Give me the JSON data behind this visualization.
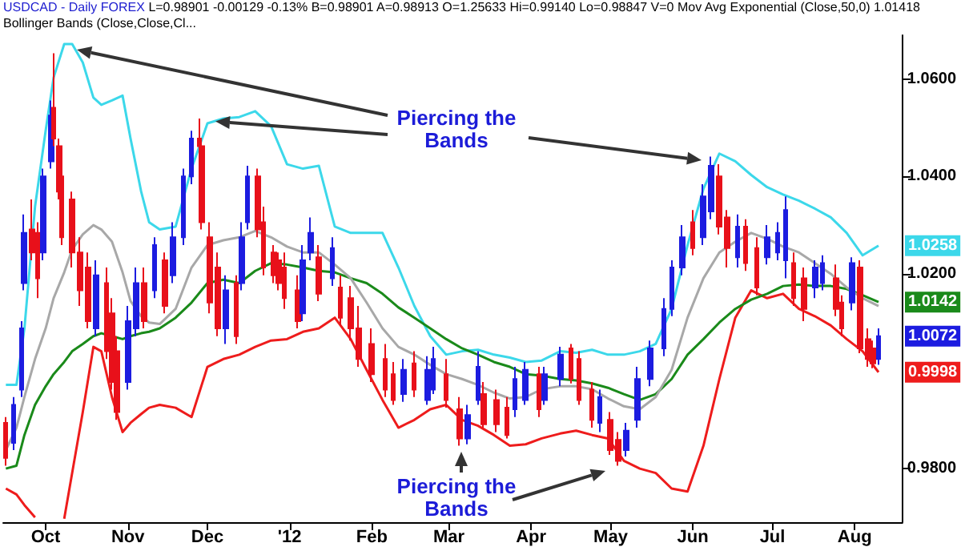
{
  "chart_data": {
    "type": "candlestick",
    "title": "USDCAD - Daily FOREX",
    "subtitle": "L=0.98901 -0.00129 -0.13% B=0.98901 A=0.98913 O=1.25633 Hi=0.99140 Lo=0.98847 V=0 Mov Avg Exponential (Close,50,0) 1.01418 Bollinger Bands (Close,Close,Cl...",
    "annotations": [
      {
        "text": "Piercing the Bands",
        "x": "2011-12-04",
        "y": 1.0513
      },
      "Piercing the Bands"
    ],
    "xlim": [
      "2011-09-15",
      "2012-08-19"
    ],
    "xticks": [
      {
        "value": "2011-10-01",
        "label": "Oct"
      },
      {
        "value": "2011-11-01",
        "label": "Nov"
      },
      {
        "value": "2011-12-01",
        "label": "Dec"
      },
      {
        "value": "2012-01-01",
        "label": "'12"
      },
      {
        "value": "2012-02-01",
        "label": "Feb"
      },
      {
        "value": "2012-03-01",
        "label": "Mar"
      },
      {
        "value": "2012-04-01",
        "label": "Apr"
      },
      {
        "value": "2012-05-01",
        "label": "May"
      },
      {
        "value": "2012-06-01",
        "label": "Jun"
      },
      {
        "value": "2012-07-01",
        "label": "Jul"
      },
      {
        "value": "2012-08-01",
        "label": "Aug"
      }
    ],
    "ylim": [
      0.969,
      1.069
    ],
    "yticks": [
      {
        "value": 0.98,
        "label": "0.9800"
      },
      {
        "value": 1.02,
        "label": "1.0200"
      },
      {
        "value": 1.04,
        "label": "1.0400"
      },
      {
        "value": 1.06,
        "label": "1.0600"
      }
    ],
    "x": [
      "2011-09-16",
      "2011-09-20",
      "2011-09-23",
      "2011-09-27",
      "2011-10-01",
      "2011-10-04",
      "2011-10-08",
      "2011-10-11",
      "2011-10-15",
      "2011-10-19",
      "2011-10-22",
      "2011-10-26",
      "2011-10-30",
      "2011-11-02",
      "2011-11-06",
      "2011-11-09",
      "2011-11-13",
      "2011-11-19",
      "2011-11-25",
      "2011-12-01",
      "2011-12-07",
      "2011-12-13",
      "2011-12-19",
      "2011-12-25",
      "2011-12-31",
      "2012-01-06",
      "2012-01-12",
      "2012-01-18",
      "2012-01-24",
      "2012-01-30",
      "2012-02-05",
      "2012-02-11",
      "2012-02-17",
      "2012-02-23",
      "2012-02-29",
      "2012-03-06",
      "2012-03-12",
      "2012-03-18",
      "2012-03-24",
      "2012-03-30",
      "2012-04-05",
      "2012-04-12",
      "2012-04-18",
      "2012-04-24",
      "2012-04-30",
      "2012-05-06",
      "2012-05-12",
      "2012-05-18",
      "2012-05-24",
      "2012-05-30",
      "2012-06-05",
      "2012-06-11",
      "2012-06-17",
      "2012-06-23",
      "2012-06-29",
      "2012-07-05",
      "2012-07-11",
      "2012-07-17",
      "2012-07-23",
      "2012-07-29",
      "2012-08-04",
      "2012-08-10"
    ],
    "series": [
      {
        "x": [
          "2011-09-16",
          "2011-09-19",
          "2011-09-22",
          "2011-09-23",
          "2011-09-26",
          "2011-09-28",
          "2011-09-30",
          "2011-10-03",
          "2011-10-04",
          "2011-10-06",
          "2011-10-07",
          "2011-10-11",
          "2011-10-14",
          "2011-10-17",
          "2011-10-20",
          "2011-10-24",
          "2011-10-26",
          "2011-10-28",
          "2011-11-01",
          "2011-11-04",
          "2011-11-07",
          "2011-11-11",
          "2011-11-15",
          "2011-11-18",
          "2011-11-22",
          "2011-11-25",
          "2011-11-28",
          "2011-11-29",
          "2011-12-02",
          "2011-12-05",
          "2011-12-08",
          "2011-12-12",
          "2011-12-14",
          "2011-12-16",
          "2011-12-20",
          "2011-12-22",
          "2011-12-26",
          "2011-12-28",
          "2011-12-30",
          "2012-01-04",
          "2012-01-06",
          "2012-01-09",
          "2012-01-12",
          "2012-01-17",
          "2012-01-20",
          "2012-01-24",
          "2012-01-27",
          "2012-02-01",
          "2012-02-06",
          "2012-02-09",
          "2012-02-13",
          "2012-02-17",
          "2012-02-22",
          "2012-02-24",
          "2012-02-29",
          "2012-03-05",
          "2012-03-08",
          "2012-03-12",
          "2012-03-14",
          "2012-03-19",
          "2012-03-23",
          "2012-03-26",
          "2012-03-30",
          "2012-04-04",
          "2012-04-06",
          "2012-04-12",
          "2012-04-16",
          "2012-04-19",
          "2012-04-24",
          "2012-04-27",
          "2012-05-01",
          "2012-05-04",
          "2012-05-07",
          "2012-05-11",
          "2012-05-16",
          "2012-05-21",
          "2012-05-24",
          "2012-05-28",
          "2012-06-01",
          "2012-06-05",
          "2012-06-08",
          "2012-06-11",
          "2012-06-14",
          "2012-06-18",
          "2012-06-21",
          "2012-06-25",
          "2012-06-29",
          "2012-07-03",
          "2012-07-06",
          "2012-07-09",
          "2012-07-13",
          "2012-07-17",
          "2012-07-20",
          "2012-07-25",
          "2012-07-27",
          "2012-07-31",
          "2012-08-03",
          "2012-08-06",
          "2012-08-08",
          "2012-08-10"
        ],
        "ohlc": [
          [
            0.9894,
            0.9906,
            0.9806,
            0.9822
          ],
          [
            0.9853,
            0.9947,
            0.9838,
            0.9931
          ],
          [
            0.9962,
            1.0103,
            0.9947,
            1.0088
          ],
          [
            1.0181,
            1.0322,
            1.0166,
            1.0284
          ],
          [
            1.0291,
            1.0353,
            1.0228,
            1.0244
          ],
          [
            1.0284,
            1.0306,
            1.015,
            1.0191
          ],
          [
            1.0244,
            1.0416,
            1.0228,
            1.04
          ],
          [
            1.0431,
            1.0556,
            1.0416,
            1.0525
          ],
          [
            1.0541,
            1.0653,
            1.0462,
            1.0478
          ],
          [
            1.0462,
            1.0478,
            1.0353,
            1.0369
          ],
          [
            1.04,
            1.0416,
            1.0259,
            1.0275
          ],
          [
            1.0353,
            1.0369,
            1.0213,
            1.0244
          ],
          [
            1.0244,
            1.0275,
            1.0134,
            1.0166
          ],
          [
            1.0213,
            1.0244,
            1.0088,
            1.0103
          ],
          [
            1.0088,
            1.0228,
            1.0072,
            1.0197
          ],
          [
            1.0181,
            1.0213,
            1.0025,
            1.0041
          ],
          [
            1.0119,
            1.015,
            0.9962,
            0.9978
          ],
          [
            1.0041,
            1.0072,
            0.99,
            0.9916
          ],
          [
            0.9978,
            1.0134,
            0.9962,
            1.0103
          ],
          [
            1.0088,
            1.0213,
            1.0072,
            1.0181
          ],
          [
            1.0181,
            1.0213,
            1.0088,
            1.0103
          ],
          [
            1.0166,
            1.0275,
            1.015,
            1.0259
          ],
          [
            1.0228,
            1.0244,
            1.0119,
            1.0134
          ],
          [
            1.0197,
            1.0306,
            1.0181,
            1.0275
          ],
          [
            1.0275,
            1.0416,
            1.0259,
            1.04
          ],
          [
            1.04,
            1.0494,
            1.0384,
            1.0478
          ],
          [
            1.0478,
            1.0519,
            1.0431,
            1.0462
          ],
          [
            1.0462,
            1.0478,
            1.0291,
            1.0306
          ],
          [
            1.0275,
            1.0306,
            1.0119,
            1.0141
          ],
          [
            1.0213,
            1.0244,
            1.0072,
            1.0088
          ],
          [
            1.0088,
            1.0197,
            1.0056,
            1.0166
          ],
          [
            1.0181,
            1.0197,
            1.0056,
            1.0072
          ],
          [
            1.0181,
            1.0306,
            1.0166,
            1.0275
          ],
          [
            1.0306,
            1.0422,
            1.0291,
            1.04
          ],
          [
            1.04,
            1.0416,
            1.0275,
            1.0291
          ],
          [
            1.0306,
            1.0338,
            1.0197,
            1.0213
          ],
          [
            1.0244,
            1.0259,
            1.0181,
            1.0197
          ],
          [
            1.0228,
            1.0244,
            1.0166,
            1.0181
          ],
          [
            1.0213,
            1.0244,
            1.0128,
            1.015
          ],
          [
            1.0166,
            1.0197,
            1.0088,
            1.0103
          ],
          [
            1.0119,
            1.0259,
            1.0103,
            1.0228
          ],
          [
            1.0244,
            1.0316,
            1.0228,
            1.0284
          ],
          [
            1.0234,
            1.0259,
            1.0144,
            1.0159
          ],
          [
            1.0191,
            1.0275,
            1.0175,
            1.0253
          ],
          [
            1.0172,
            1.0197,
            1.0094,
            1.011
          ],
          [
            1.015,
            1.0175,
            1.0063,
            1.0088
          ],
          [
            1.0088,
            1.0134,
            1.0009,
            1.0025
          ],
          [
            1.0056,
            1.0088,
            0.9978,
            0.9994
          ],
          [
            1.0025,
            1.0056,
            0.9947,
            0.9962
          ],
          [
            0.9994,
            1.0019,
            0.9931,
            0.9941
          ],
          [
            0.9953,
            1.0025,
            0.9937,
            1.0003
          ],
          [
            1.0016,
            1.0041,
            0.9947,
            0.9962
          ],
          [
            0.9941,
            1.0031,
            0.9931,
            1.0003
          ],
          [
            0.9962,
            1.005,
            0.9953,
            1.0025
          ],
          [
            0.9994,
            1.0025,
            0.9925,
            0.9941
          ],
          [
            0.9922,
            0.9947,
            0.9847,
            0.9862
          ],
          [
            0.9862,
            0.9931,
            0.985,
            0.991
          ],
          [
            0.9941,
            1.0041,
            0.9931,
            1.0009
          ],
          [
            0.9953,
            0.9978,
            0.9884,
            0.9891
          ],
          [
            0.9941,
            0.9962,
            0.9875,
            0.9891
          ],
          [
            0.9925,
            0.9947,
            0.9862,
            0.9869
          ],
          [
            0.9922,
            1.0009,
            0.9906,
            0.9984
          ],
          [
            0.9941,
            1.0019,
            0.9931,
            1.0003
          ],
          [
            0.9994,
            1.0009,
            0.9906,
            0.9922
          ],
          [
            0.9941,
            1.0009,
            0.9931,
            0.9994
          ],
          [
            0.9984,
            1.005,
            0.9969,
            1.0034
          ],
          [
            1.0047,
            1.0056,
            0.9975,
            0.9984
          ],
          [
            1.0025,
            1.0041,
            0.9931,
            0.9941
          ],
          [
            0.9962,
            0.9978,
            0.9884,
            0.99
          ],
          [
            0.9894,
            0.9962,
            0.9875,
            0.9947
          ],
          [
            0.99,
            0.9916,
            0.9828,
            0.9838
          ],
          [
            0.9859,
            0.9875,
            0.9806,
            0.9816
          ],
          [
            0.9838,
            0.9894,
            0.9825,
            0.9878
          ],
          [
            0.99,
            1.0009,
            0.9884,
            0.9984
          ],
          [
            0.9984,
            1.0063,
            0.9969,
            1.0047
          ],
          [
            1.0047,
            1.015,
            1.0031,
            1.0128
          ],
          [
            1.0128,
            1.0228,
            1.0113,
            1.0213
          ],
          [
            1.0213,
            1.03,
            1.0197,
            1.0275
          ],
          [
            1.0306,
            1.0331,
            1.0238,
            1.0253
          ],
          [
            1.0275,
            1.0384,
            1.0259,
            1.0359
          ],
          [
            1.0328,
            1.0441,
            1.0312,
            1.0422
          ],
          [
            1.04,
            1.0425,
            1.0281,
            1.0297
          ],
          [
            1.0316,
            1.0331,
            1.0213,
            1.0253
          ],
          [
            1.0234,
            1.0322,
            1.0213,
            1.0297
          ],
          [
            1.0297,
            1.0312,
            1.0206,
            1.0222
          ],
          [
            1.0253,
            1.0275,
            1.0156,
            1.0172
          ],
          [
            1.0234,
            1.03,
            1.0219,
            1.0275
          ],
          [
            1.0244,
            1.0306,
            1.0228,
            1.0284
          ],
          [
            1.0228,
            1.0359,
            1.0191,
            1.0331
          ],
          [
            1.0222,
            1.0244,
            1.0134,
            1.015
          ],
          [
            1.0191,
            1.0213,
            1.0103,
            1.0128
          ],
          [
            1.0172,
            1.0228,
            1.015,
            1.0213
          ],
          [
            1.0181,
            1.0238,
            1.0166,
            1.0222
          ],
          [
            1.0191,
            1.0219,
            1.0113,
            1.0128
          ],
          [
            1.0141,
            1.0156,
            1.0072,
            1.0088
          ],
          [
            1.0141,
            1.0234,
            1.0125,
            1.0222
          ],
          [
            1.0213,
            1.0228,
            1.0037,
            1.0047
          ],
          [
            1.0066,
            1.0088,
            1.0009,
            1.0025
          ],
          [
            1.0047,
            1.0063,
            1.0006,
            1.0016
          ],
          [
            1.0025,
            1.0088,
            1.0013,
            1.0072
          ]
        ],
        "colors": [
          "#e8101a",
          "#1c1ce0",
          "#1c1ce0",
          "#1c1ce0",
          "#e8101a",
          "#e8101a",
          "#1c1ce0",
          "#1c1ce0",
          "#e8101a",
          "#e8101a",
          "#e8101a",
          "#e8101a",
          "#e8101a",
          "#e8101a",
          "#1c1ce0",
          "#e8101a",
          "#e8101a",
          "#e8101a",
          "#1c1ce0",
          "#1c1ce0",
          "#e8101a",
          "#1c1ce0",
          "#e8101a",
          "#1c1ce0",
          "#1c1ce0",
          "#1c1ce0",
          "#e8101a",
          "#e8101a",
          "#e8101a",
          "#e8101a",
          "#1c1ce0",
          "#e8101a",
          "#1c1ce0",
          "#1c1ce0",
          "#e8101a",
          "#e8101a",
          "#e8101a",
          "#e8101a",
          "#e8101a",
          "#e8101a",
          "#1c1ce0",
          "#1c1ce0",
          "#e8101a",
          "#1c1ce0",
          "#e8101a",
          "#e8101a",
          "#e8101a",
          "#e8101a",
          "#e8101a",
          "#e8101a",
          "#1c1ce0",
          "#e8101a",
          "#1c1ce0",
          "#1c1ce0",
          "#e8101a",
          "#e8101a",
          "#1c1ce0",
          "#1c1ce0",
          "#e8101a",
          "#e8101a",
          "#e8101a",
          "#1c1ce0",
          "#1c1ce0",
          "#e8101a",
          "#1c1ce0",
          "#1c1ce0",
          "#e8101a",
          "#e8101a",
          "#e8101a",
          "#1c1ce0",
          "#e8101a",
          "#e8101a",
          "#1c1ce0",
          "#1c1ce0",
          "#1c1ce0",
          "#1c1ce0",
          "#1c1ce0",
          "#1c1ce0",
          "#e8101a",
          "#1c1ce0",
          "#1c1ce0",
          "#e8101a",
          "#e8101a",
          "#1c1ce0",
          "#e8101a",
          "#e8101a",
          "#1c1ce0",
          "#1c1ce0",
          "#1c1ce0",
          "#e8101a",
          "#e8101a",
          "#1c1ce0",
          "#1c1ce0",
          "#e8101a",
          "#e8101a",
          "#1c1ce0",
          "#e8101a",
          "#e8101a",
          "#e8101a",
          "#1c1ce0"
        ],
        "value_labels": [
          null,
          null,
          null,
          null,
          null,
          null,
          null,
          null,
          null,
          null,
          null,
          null,
          null,
          null,
          null,
          null,
          null,
          null,
          null,
          null,
          null,
          null,
          null,
          null,
          null,
          null,
          null,
          null,
          null,
          null,
          null,
          null,
          null,
          null,
          null,
          null,
          null,
          null,
          null,
          null,
          null,
          null,
          null,
          null,
          null,
          null,
          null,
          null,
          null,
          null,
          null,
          null,
          null,
          null,
          null,
          null,
          null,
          null,
          null,
          null,
          null,
          null,
          null,
          null,
          null,
          null,
          null,
          null,
          null,
          null,
          null,
          null,
          null,
          null,
          null,
          null,
          null,
          null,
          null,
          null,
          null,
          null,
          null,
          null,
          null,
          null,
          null,
          null,
          null,
          null,
          null,
          null,
          null,
          null,
          null,
          null,
          null,
          null,
          null,
          "1.0072"
        ]
      },
      {
        "type": "line",
        "color": "#3cd8ea",
        "values": [
          0.9972,
          0.9972,
          1.0088,
          1.0338,
          1.0494,
          1.0603,
          1.0672,
          1.0672,
          1.0634,
          1.0562,
          1.0547,
          1.0556,
          1.0566,
          1.0478,
          1.0369,
          1.0306,
          1.0291,
          1.0297,
          1.0416,
          1.0509,
          1.0519,
          1.0522,
          1.0534,
          1.0503,
          1.0425,
          1.0416,
          1.0422,
          1.0297,
          1.0284,
          1.0284,
          1.0284,
          1.0213,
          1.0134,
          1.0072,
          1.0034,
          1.0041,
          1.0044,
          1.0034,
          1.0028,
          1.0019,
          1.0022,
          1.0041,
          1.0038,
          1.0044,
          1.0034,
          1.0034,
          1.0041,
          1.0056,
          1.0128,
          1.0259,
          1.0375,
          1.0447,
          1.0431,
          1.0403,
          1.0378,
          1.0363,
          1.035,
          1.0334,
          1.0316,
          1.0284,
          1.0238,
          1.0258
        ],
        "value_labels": [
          null,
          null,
          null,
          null,
          null,
          null,
          null,
          null,
          null,
          null,
          null,
          null,
          null,
          null,
          null,
          null,
          null,
          null,
          null,
          null,
          null,
          null,
          null,
          null,
          null,
          null,
          null,
          null,
          null,
          null,
          null,
          null,
          null,
          null,
          null,
          null,
          null,
          null,
          null,
          null,
          null,
          null,
          null,
          null,
          null,
          null,
          null,
          null,
          null,
          null,
          null,
          null,
          null,
          null,
          null,
          null,
          null,
          null,
          null,
          null,
          null,
          "1.0258"
        ]
      },
      {
        "type": "line",
        "color": "#ee1c1c",
        "values": [
          0.9759,
          0.9747,
          0.9725,
          0.97,
          null,
          null,
          0.9697,
          0.9791,
          0.9916,
          1.005,
          1.0041,
          0.9947,
          0.9875,
          0.9894,
          0.9912,
          0.9925,
          0.9931,
          0.9925,
          0.9906,
          1.0009,
          1.0025,
          1.0034,
          1.005,
          1.0063,
          1.0066,
          1.0081,
          1.0088,
          1.011,
          1.0066,
          1.0003,
          0.9941,
          0.9884,
          0.99,
          0.9922,
          0.9931,
          0.99,
          0.9888,
          0.9869,
          0.9847,
          0.985,
          0.9862,
          0.9872,
          0.9878,
          0.9869,
          0.9862,
          0.9816,
          0.98,
          0.9791,
          0.9759,
          0.9753,
          0.9847,
          0.9984,
          1.011,
          1.0166,
          1.015,
          1.0159,
          1.0128,
          1.0113,
          1.0094,
          1.0066,
          1.0041,
          0.9998
        ],
        "value_labels": [
          null,
          null,
          null,
          null,
          null,
          null,
          null,
          null,
          null,
          null,
          null,
          null,
          null,
          null,
          null,
          null,
          null,
          null,
          null,
          null,
          null,
          null,
          null,
          null,
          null,
          null,
          null,
          null,
          null,
          null,
          null,
          null,
          null,
          null,
          null,
          null,
          null,
          null,
          null,
          null,
          null,
          null,
          null,
          null,
          null,
          null,
          null,
          null,
          null,
          null,
          null,
          null,
          null,
          null,
          null,
          null,
          null,
          null,
          null,
          null,
          null,
          "0.9998"
        ]
      },
      {
        "type": "line",
        "color": "#1a8a1a",
        "values": [
          0.98,
          0.9806,
          0.9869,
          0.9931,
          0.9969,
          0.9994,
          1.0019,
          1.0041,
          1.0056,
          1.0072,
          1.0078,
          1.0072,
          1.0066,
          1.0072,
          1.0078,
          1.0081,
          1.0088,
          1.011,
          1.0141,
          1.0181,
          1.0188,
          1.0181,
          1.0206,
          1.0222,
          1.0219,
          1.0213,
          1.0206,
          1.0203,
          1.0191,
          1.0181,
          1.0159,
          1.0131,
          1.011,
          1.0088,
          1.0066,
          1.0047,
          1.0034,
          1.0019,
          1.0009,
          0.9994,
          0.9991,
          0.9984,
          0.9981,
          0.9975,
          0.9966,
          0.9953,
          0.9941,
          0.9953,
          0.9984,
          1.0034,
          1.0066,
          1.01,
          1.0128,
          1.0147,
          1.0159,
          1.0175,
          1.0178,
          1.0175,
          1.0175,
          1.0169,
          1.0156,
          1.0142
        ],
        "value_labels": [
          null,
          null,
          null,
          null,
          null,
          null,
          null,
          null,
          null,
          null,
          null,
          null,
          null,
          null,
          null,
          null,
          null,
          null,
          null,
          null,
          null,
          null,
          null,
          null,
          null,
          null,
          null,
          null,
          null,
          null,
          null,
          null,
          null,
          null,
          null,
          null,
          null,
          null,
          null,
          null,
          null,
          null,
          null,
          null,
          null,
          null,
          null,
          null,
          null,
          null,
          null,
          null,
          null,
          null,
          null,
          null,
          null,
          null,
          null,
          null,
          null,
          "1.0142"
        ]
      },
      {
        "type": "line",
        "color": "#a8a8a8",
        "values": [
          0.9838,
          0.9884,
          0.9947,
          1.0025,
          1.0088,
          1.015,
          1.0203,
          1.025,
          1.0281,
          1.03,
          1.0291,
          1.0266,
          1.0203,
          1.0144,
          1.0113,
          1.01,
          1.0097,
          1.0128,
          1.0213,
          1.0259,
          1.0269,
          1.0275,
          1.0288,
          1.0275,
          1.0256,
          1.0244,
          1.0244,
          1.0219,
          1.0191,
          1.0141,
          1.0088,
          1.005,
          1.0034,
          1.0013,
          0.9994,
          0.9984,
          0.9972,
          0.9956,
          0.9944,
          0.9947,
          0.9963,
          0.9969,
          0.9969,
          0.9963,
          0.9944,
          0.9928,
          0.9922,
          0.9947,
          1.0003,
          1.011,
          1.0191,
          1.0244,
          1.0266,
          1.0284,
          1.0272,
          1.0256,
          1.0244,
          1.0222,
          1.02,
          1.0172,
          1.015,
          1.0134
        ]
      }
    ]
  }
}
